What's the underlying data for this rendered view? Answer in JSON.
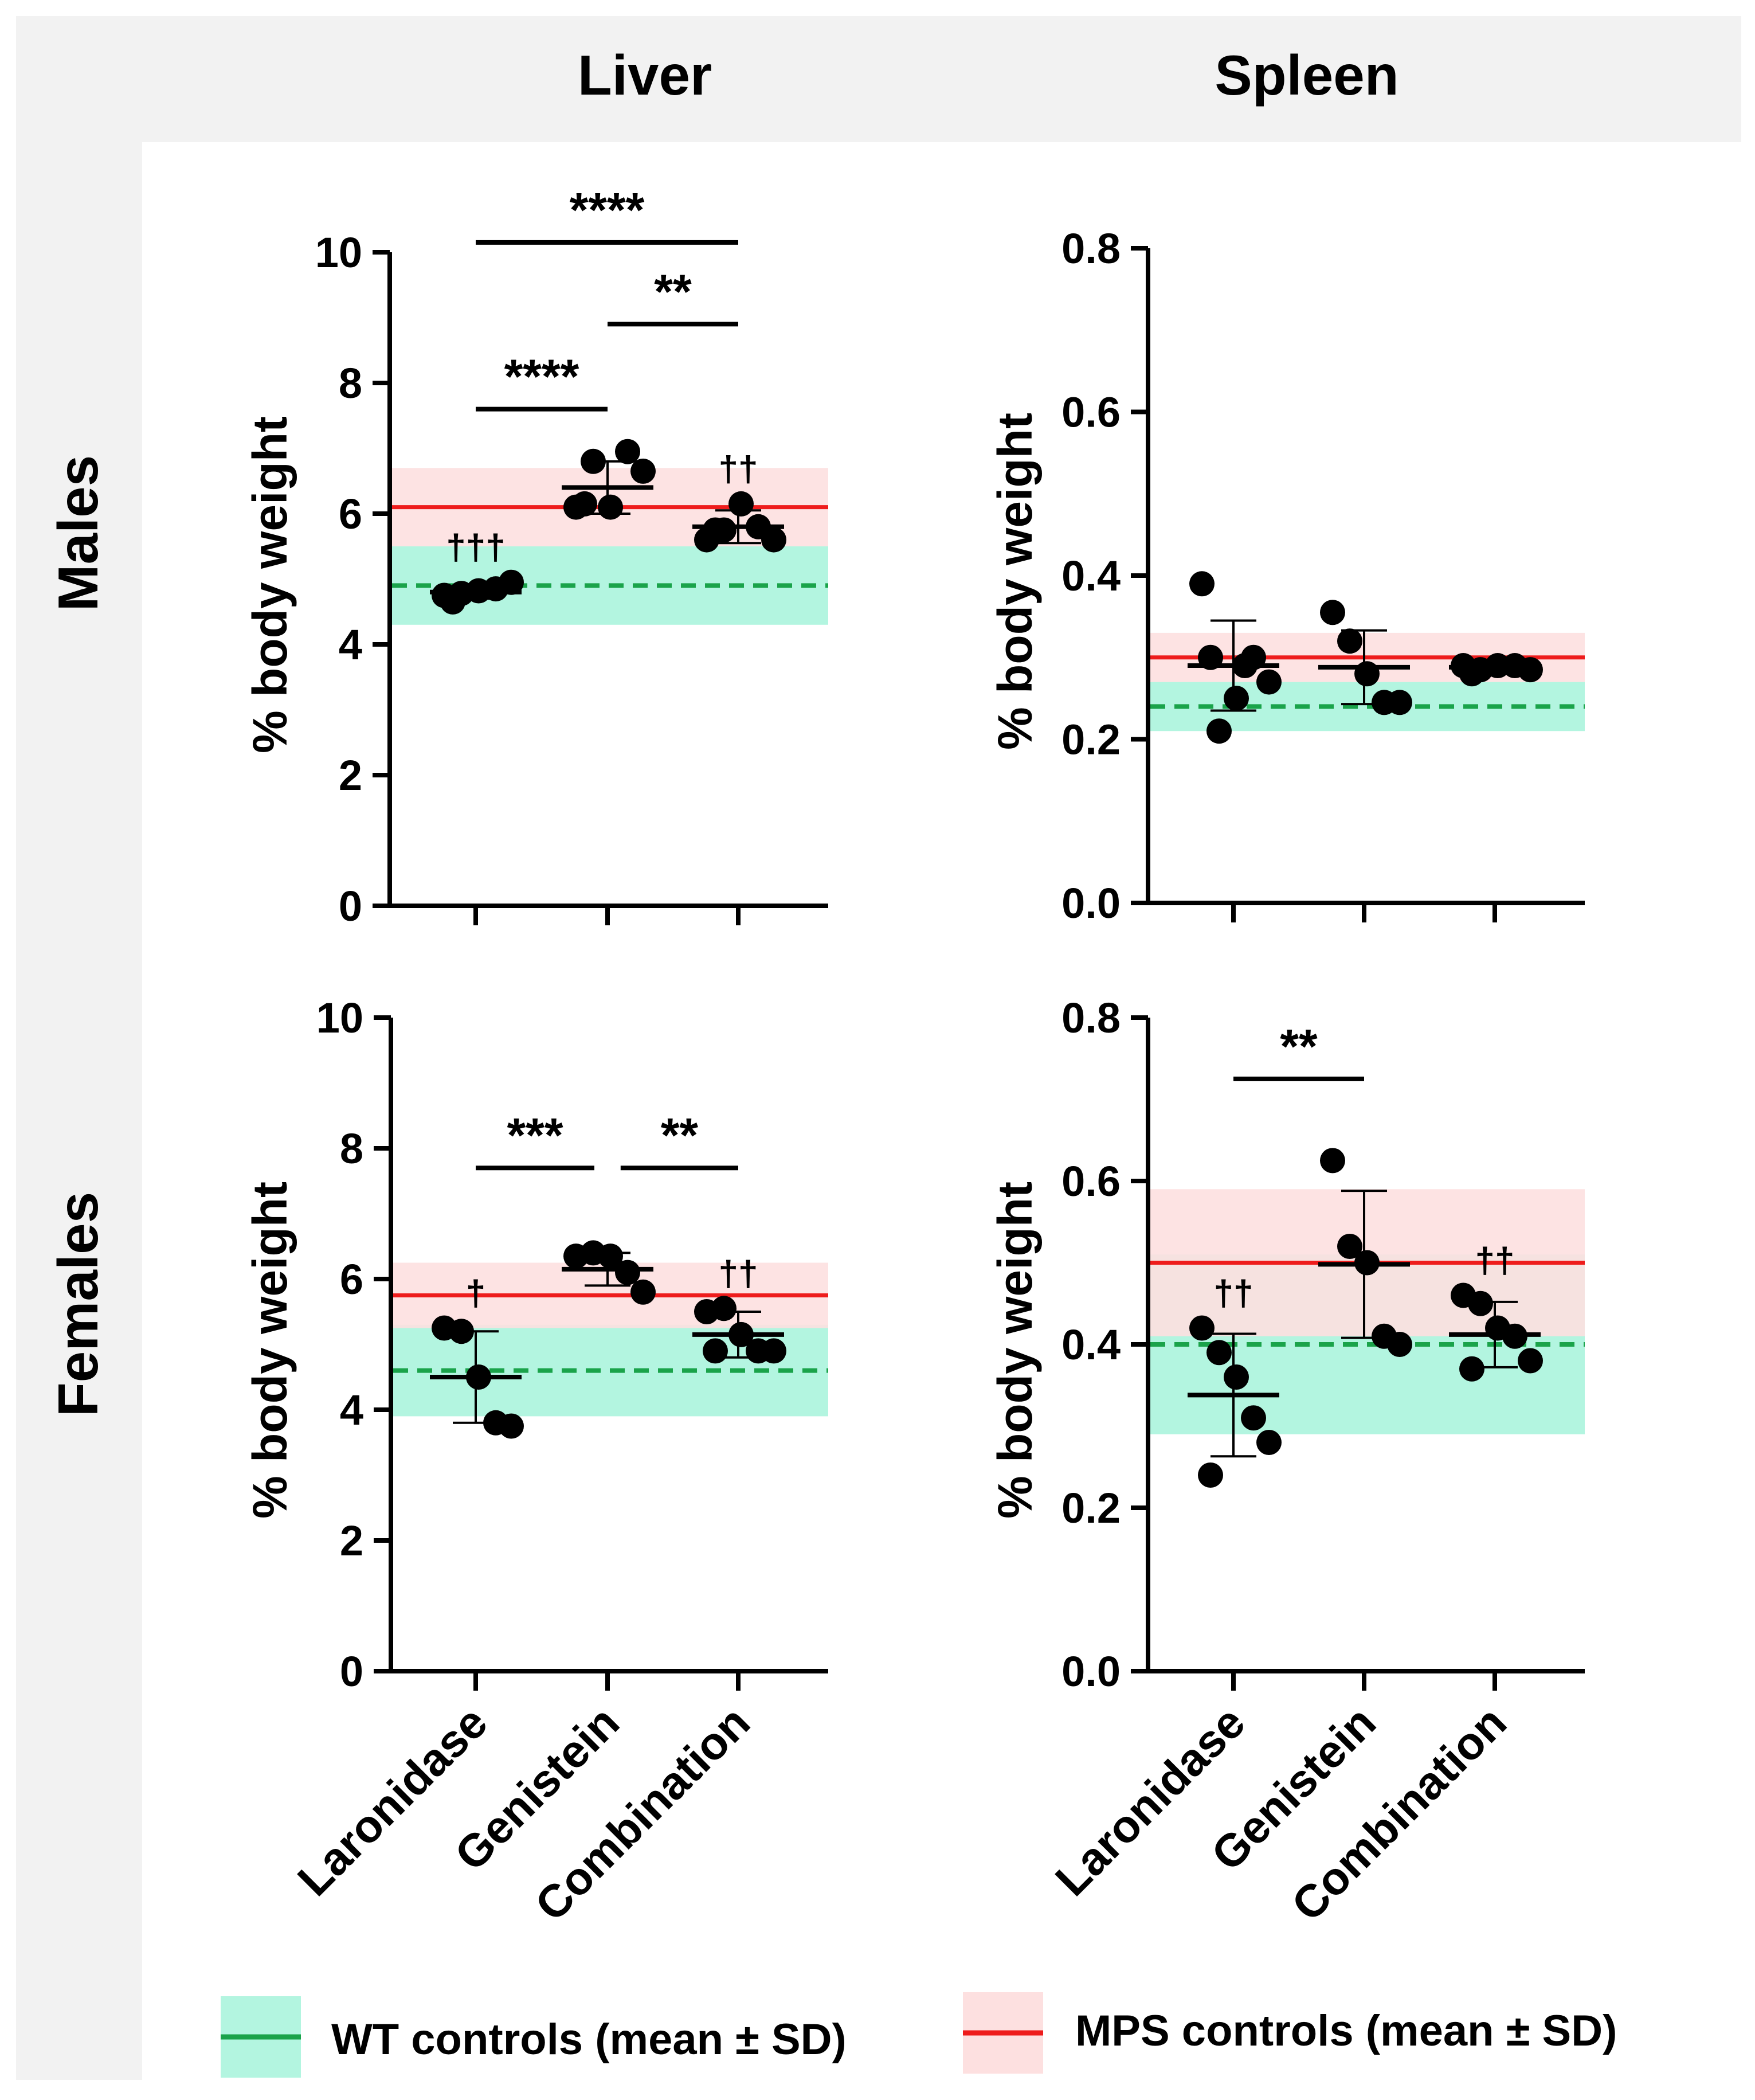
{
  "header": {
    "liver": "Liver",
    "spleen": "Spleen"
  },
  "rows": {
    "males": "Males",
    "females": "Females"
  },
  "legend": {
    "wt": "WT controls  (mean ± SD)",
    "mps": "MPS controls  (mean ± SD)",
    "wt_fill": "#b3f5e0",
    "wt_line": "#1aa34a",
    "mps_fill": "#fde0e0",
    "mps_line": "#ee1c1c"
  },
  "chart_data": [
    {
      "id": "males-liver",
      "type": "scatter",
      "ylabel": "% body weight",
      "ylim": [
        0,
        10
      ],
      "yticks": [
        "0",
        "2",
        "4",
        "6",
        "8",
        "10"
      ],
      "categories": [
        "Laronidase",
        "Genistein",
        "Combination"
      ],
      "show_xlabels": false,
      "wt": {
        "mean": 4.9,
        "sd": 0.6
      },
      "mps": {
        "mean": 6.1,
        "sd": 0.6
      },
      "groups": [
        {
          "points": [
            4.75,
            4.78,
            4.82,
            4.85,
            4.95,
            4.65
          ],
          "mean": 4.8,
          "sd": 0.1,
          "dagger": "†††"
        },
        {
          "points": [
            6.1,
            6.8,
            6.1,
            6.95,
            6.65,
            6.15
          ],
          "mean": 6.4,
          "sd": 0.4,
          "dagger": ""
        },
        {
          "points": [
            5.6,
            5.75,
            6.15,
            5.8,
            5.6,
            5.75
          ],
          "mean": 5.8,
          "sd": 0.25,
          "dagger": "††"
        }
      ],
      "brackets": [
        {
          "from": 0,
          "to": 1,
          "y": 7.6,
          "label": "****"
        },
        {
          "from": 1,
          "to": 2,
          "y": 8.9,
          "label": "**"
        },
        {
          "from": 0,
          "to": 2,
          "y": 10.15,
          "label": "****"
        }
      ]
    },
    {
      "id": "males-spleen",
      "type": "scatter",
      "ylabel": "% body weight",
      "ylim": [
        0,
        0.8
      ],
      "yticks": [
        "0.0",
        "0.2",
        "0.4",
        "0.6",
        "0.8"
      ],
      "categories": [
        "Laronidase",
        "Genistein",
        "Combination"
      ],
      "show_xlabels": false,
      "wt": {
        "mean": 0.24,
        "sd": 0.03
      },
      "mps": {
        "mean": 0.3,
        "sd": 0.03
      },
      "groups": [
        {
          "points": [
            0.39,
            0.21,
            0.25,
            0.3,
            0.27,
            0.3,
            0.29
          ],
          "mean": 0.29,
          "sd": 0.055,
          "dagger": ""
        },
        {
          "points": [
            0.355,
            0.32,
            0.28,
            0.245,
            0.245
          ],
          "mean": 0.288,
          "sd": 0.045,
          "dagger": ""
        },
        {
          "points": [
            0.29,
            0.285,
            0.29,
            0.29,
            0.285,
            0.28
          ],
          "mean": 0.288,
          "sd": 0.005,
          "dagger": ""
        }
      ],
      "brackets": []
    },
    {
      "id": "females-liver",
      "type": "scatter",
      "ylabel": "% body weight",
      "ylim": [
        0,
        10
      ],
      "yticks": [
        "0",
        "2",
        "4",
        "6",
        "8",
        "10"
      ],
      "categories": [
        "Laronidase",
        "Genistein",
        "Combination"
      ],
      "show_xlabels": true,
      "wt": {
        "mean": 4.6,
        "sd": 0.7
      },
      "mps": {
        "mean": 5.75,
        "sd": 0.5
      },
      "groups": [
        {
          "points": [
            5.25,
            5.2,
            4.5,
            3.8,
            3.75
          ],
          "mean": 4.5,
          "sd": 0.7,
          "dagger": "†"
        },
        {
          "points": [
            6.35,
            6.4,
            6.35,
            6.1,
            5.8
          ],
          "mean": 6.15,
          "sd": 0.25,
          "dagger": ""
        },
        {
          "points": [
            5.5,
            5.55,
            5.15,
            4.9,
            4.9,
            4.9
          ],
          "mean": 5.15,
          "sd": 0.35,
          "dagger": "††"
        }
      ],
      "brackets": [
        {
          "from": 0,
          "to": 0.9,
          "y": 7.7,
          "label": "***"
        },
        {
          "from": 1.1,
          "to": 2,
          "y": 7.7,
          "label": "**"
        }
      ]
    },
    {
      "id": "females-spleen",
      "type": "scatter",
      "ylabel": "% body weight",
      "ylim": [
        0,
        0.8
      ],
      "yticks": [
        "0.0",
        "0.2",
        "0.4",
        "0.6",
        "0.8"
      ],
      "categories": [
        "Laronidase",
        "Genistein",
        "Combination"
      ],
      "show_xlabels": true,
      "wt": {
        "mean": 0.4,
        "sd": 0.11
      },
      "mps": {
        "mean": 0.5,
        "sd": 0.09
      },
      "groups": [
        {
          "points": [
            0.42,
            0.39,
            0.36,
            0.31,
            0.28,
            0.24
          ],
          "mean": 0.338,
          "sd": 0.075,
          "dagger": "††"
        },
        {
          "points": [
            0.625,
            0.52,
            0.5,
            0.41,
            0.4
          ],
          "mean": 0.498,
          "sd": 0.09,
          "dagger": ""
        },
        {
          "points": [
            0.46,
            0.45,
            0.42,
            0.41,
            0.38,
            0.37
          ],
          "mean": 0.412,
          "sd": 0.04,
          "dagger": "††"
        }
      ],
      "brackets": [
        {
          "from": 0,
          "to": 1,
          "y": 0.725,
          "label": "**"
        }
      ]
    }
  ]
}
